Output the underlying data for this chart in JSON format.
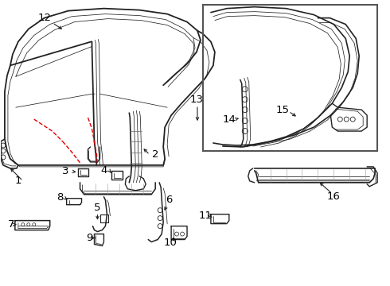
{
  "bg_color": "#ffffff",
  "line_color": "#222222",
  "red_color": "#dd0000",
  "box_color": "#555555",
  "lw": 1.0,
  "lw_t": 0.55,
  "fs": 9.5
}
